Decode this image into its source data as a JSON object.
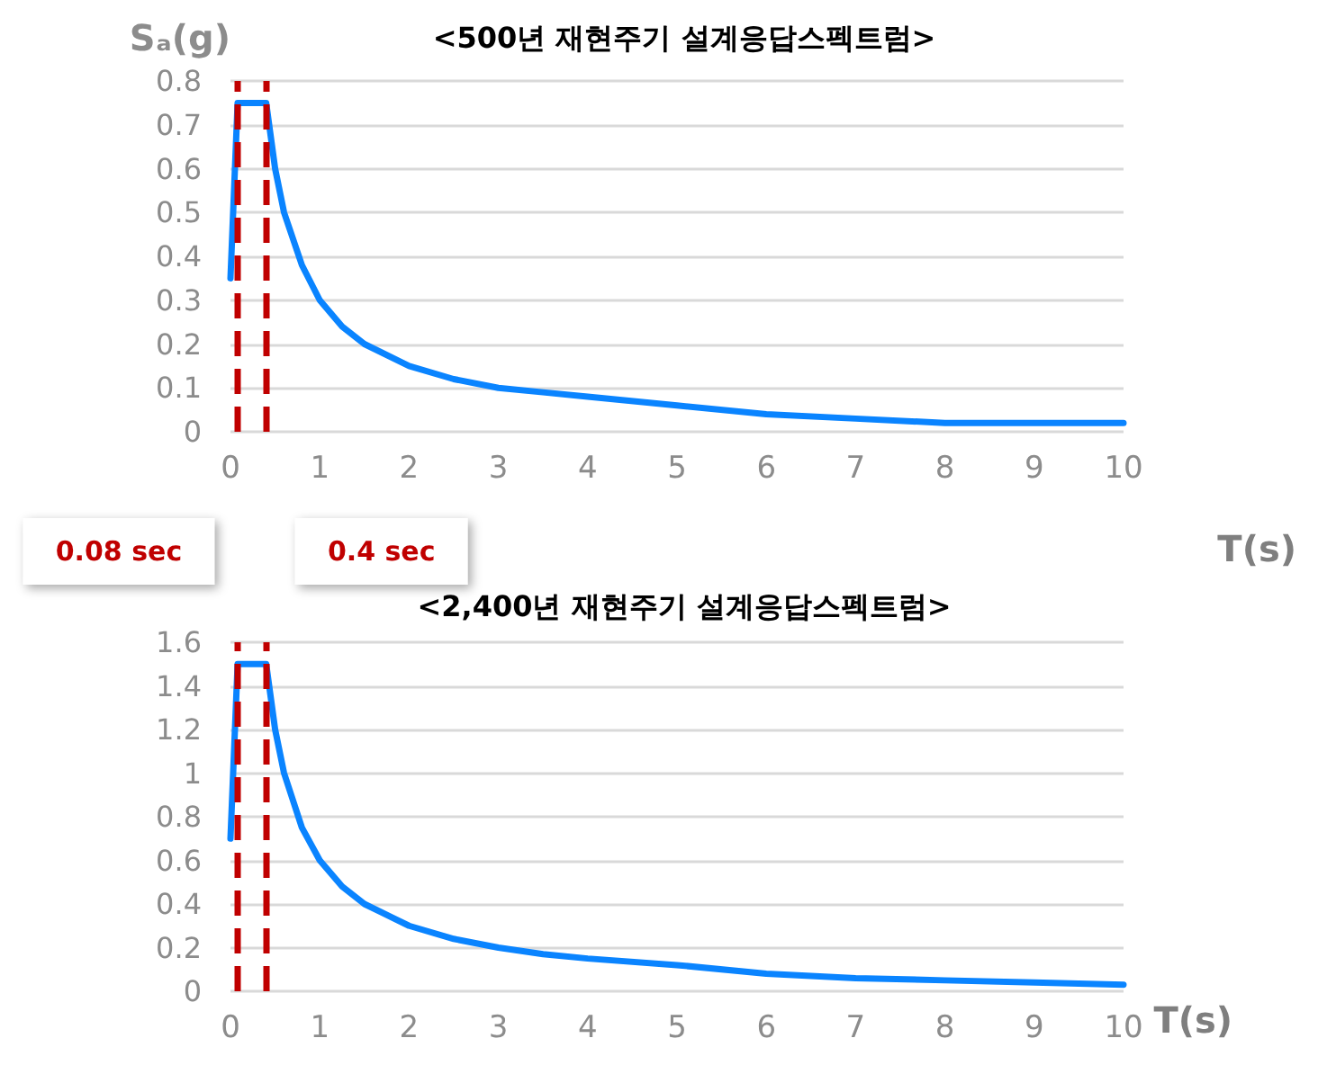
{
  "chart_data": [
    {
      "type": "line",
      "title": "<500년 재현주기 설계응답스펙트럼>",
      "ylabel": "Sₐ(g)",
      "xlabel": "T(s)",
      "x": [
        0,
        0.08,
        0.4,
        0.5,
        0.6,
        0.8,
        1,
        1.25,
        1.5,
        2,
        2.5,
        3,
        3.5,
        4,
        5,
        6,
        7,
        8,
        9,
        10
      ],
      "series": [
        {
          "color": "#0a84ff",
          "values": [
            0.35,
            0.75,
            0.75,
            0.6,
            0.5,
            0.38,
            0.3,
            0.24,
            0.2,
            0.15,
            0.12,
            0.1,
            0.09,
            0.08,
            0.06,
            0.04,
            0.03,
            0.02,
            0.02,
            0.02
          ]
        }
      ],
      "xlim": [
        0,
        10
      ],
      "xticks": [
        0,
        1,
        2,
        3,
        4,
        5,
        6,
        7,
        8,
        9,
        10
      ],
      "ylim": [
        0,
        0.8
      ],
      "yticks": [
        0,
        0.1,
        0.2,
        0.3,
        0.4,
        0.5,
        0.6,
        0.7,
        0.8
      ],
      "ref_lines": [
        {
          "axis": "x",
          "value": 0.08,
          "label": "0.08 sec",
          "color": "#c00000",
          "line_style": "dashed"
        },
        {
          "axis": "x",
          "value": 0.4,
          "label": "0.4 sec",
          "color": "#c00000",
          "line_style": "dashed"
        }
      ],
      "grid": "y",
      "marker": "none"
    },
    {
      "type": "line",
      "title": "<2,400년 재현주기 설계응답스펙트럼>",
      "xlabel": "T(s)",
      "x": [
        0,
        0.08,
        0.4,
        0.5,
        0.6,
        0.8,
        1,
        1.25,
        1.5,
        2,
        2.5,
        3,
        3.5,
        4,
        5,
        6,
        7,
        8,
        9,
        10
      ],
      "series": [
        {
          "color": "#0a84ff",
          "values": [
            0.7,
            1.5,
            1.5,
            1.2,
            1.0,
            0.75,
            0.6,
            0.48,
            0.4,
            0.3,
            0.24,
            0.2,
            0.17,
            0.15,
            0.12,
            0.08,
            0.06,
            0.05,
            0.04,
            0.03
          ]
        }
      ],
      "xlim": [
        0,
        10
      ],
      "xticks": [
        0,
        1,
        2,
        3,
        4,
        5,
        6,
        7,
        8,
        9,
        10
      ],
      "ylim": [
        0,
        1.6
      ],
      "yticks": [
        0,
        0.2,
        0.4,
        0.6,
        0.8,
        1,
        1.2,
        1.4,
        1.6
      ],
      "ref_lines": [
        {
          "axis": "x",
          "value": 0.08,
          "color": "#c00000",
          "line_style": "dashed"
        },
        {
          "axis": "x",
          "value": 0.4,
          "color": "#c00000",
          "line_style": "dashed"
        }
      ],
      "grid": "y",
      "marker": "none"
    }
  ]
}
